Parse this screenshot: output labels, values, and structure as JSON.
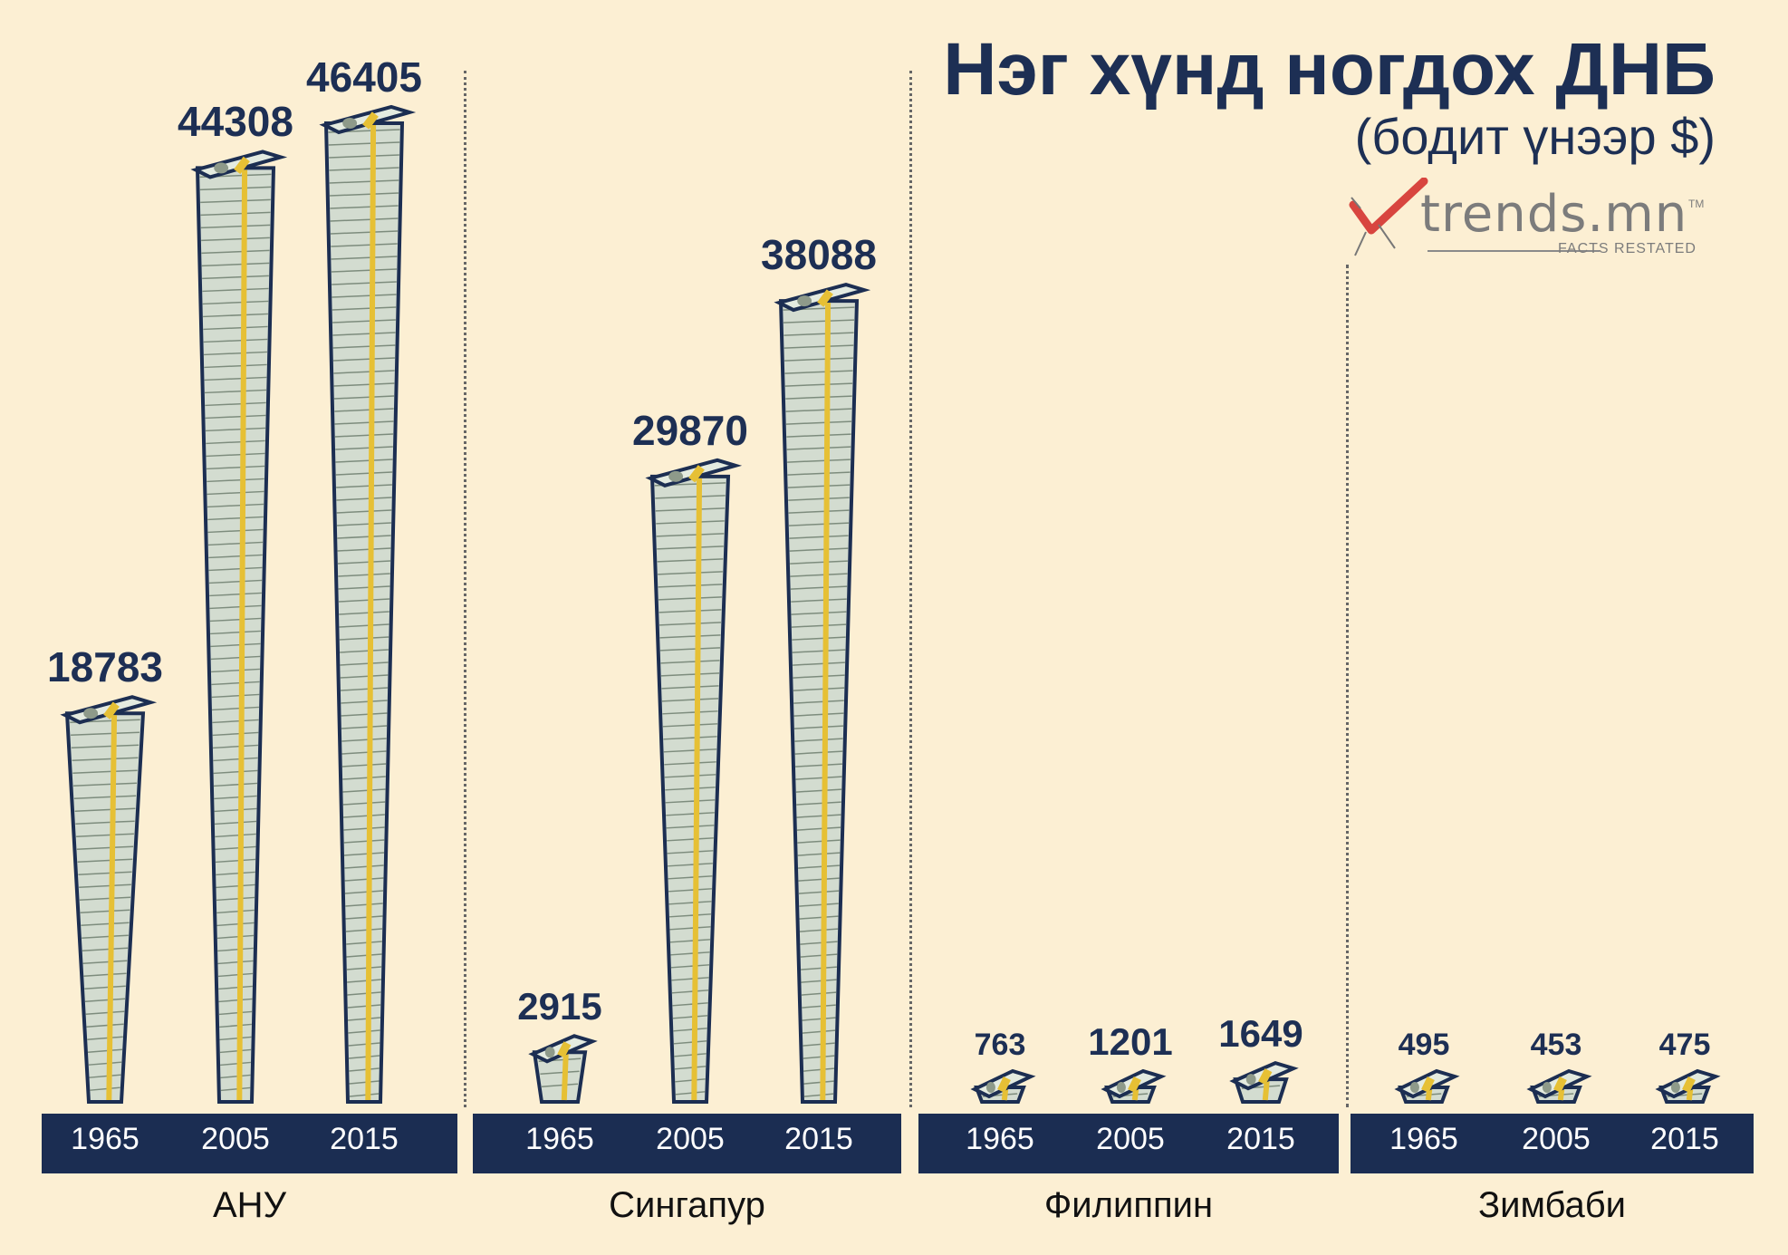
{
  "title": "Нэг хүнд ногдох ДНБ",
  "subtitle": "(бодит үнээр $)",
  "logo": {
    "name": "trends.mn",
    "tm": "TM",
    "tagline": "FACTS RESTATED"
  },
  "colors": {
    "background": "#fcefd3",
    "text": "#1d2f54",
    "bar": "#1b2d52",
    "bill": "#d3dcd0",
    "bill_outline": "#1c2e52",
    "band": "#e6c035"
  },
  "chart_data": {
    "type": "bar",
    "unit": "$",
    "icon": "money-stack-icon",
    "series_years": [
      "1965",
      "2005",
      "2015"
    ],
    "groups": [
      {
        "country": "АНУ",
        "years": [
          "1965",
          "2005",
          "2015"
        ],
        "values": [
          18783,
          44308,
          46405
        ],
        "labels": [
          "18783",
          "44308",
          "46405"
        ]
      },
      {
        "country": "Сингапур",
        "years": [
          "1965",
          "2005",
          "2015"
        ],
        "values": [
          2915,
          29870,
          38088
        ],
        "labels": [
          "2915",
          "29870",
          "38088"
        ]
      },
      {
        "country": "Филиппин",
        "years": [
          "1965",
          "2005",
          "2015"
        ],
        "values": [
          763,
          1201,
          1649
        ],
        "labels": [
          "763",
          "1201",
          "1649"
        ]
      },
      {
        "country": "Зимбаби",
        "years": [
          "1965",
          "2005",
          "2015"
        ],
        "values": [
          495,
          453,
          475
        ],
        "labels": [
          "495",
          "453",
          "475"
        ]
      }
    ]
  }
}
